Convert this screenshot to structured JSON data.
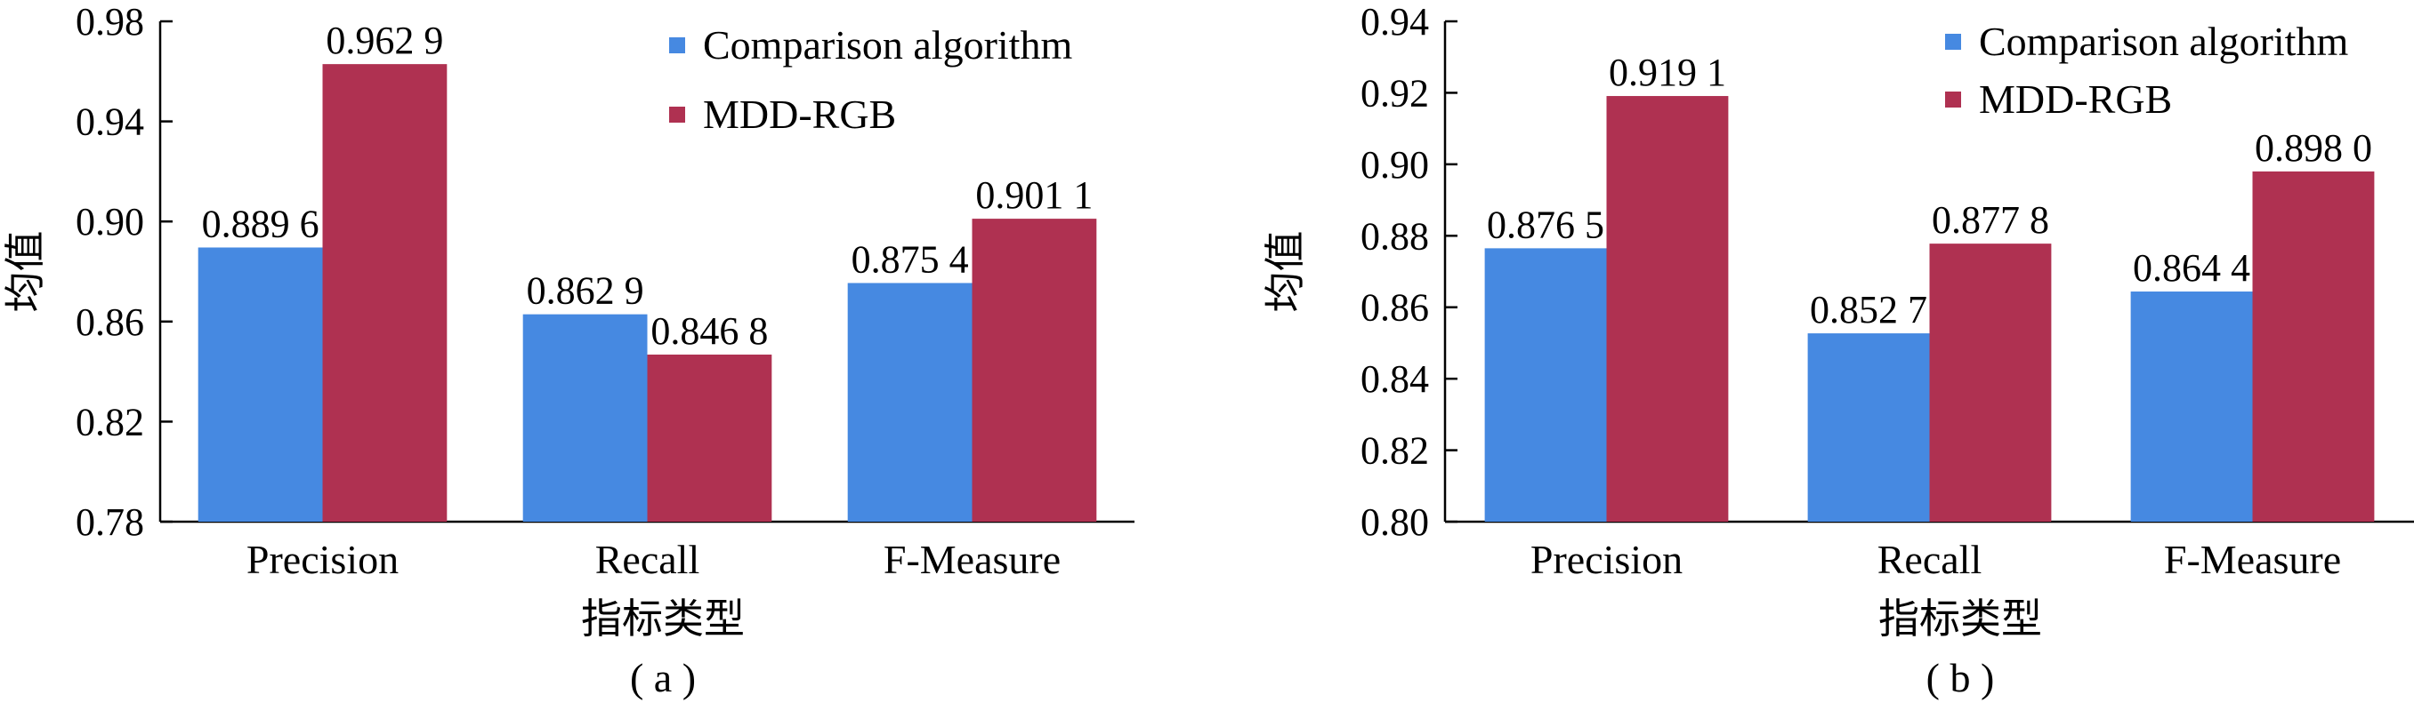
{
  "colors": {
    "comparison": "#4689E1",
    "mdd": "#AF3151"
  },
  "chart_data": [
    {
      "type": "bar",
      "caption": "( a )",
      "categories": [
        "Precision",
        "Recall",
        "F-Measure"
      ],
      "series": [
        {
          "name": "Comparison algorithm",
          "values": [
            0.8896,
            0.8629,
            0.8754
          ],
          "labels": [
            "0.889 6",
            "0.862 9",
            "0.875 4"
          ]
        },
        {
          "name": "MDD-RGB",
          "values": [
            0.9629,
            0.8468,
            0.9011
          ],
          "labels": [
            "0.962 9",
            "0.846 8",
            "0.901 1"
          ]
        }
      ],
      "xlabel": "指标类型",
      "ylabel": "均值",
      "ylim": [
        0.78,
        0.98
      ],
      "yticks": [
        "0.78",
        "0.82",
        "0.86",
        "0.90",
        "0.94",
        "0.98"
      ],
      "grid": false,
      "legend": "top-right"
    },
    {
      "type": "bar",
      "caption": "( b )",
      "categories": [
        "Precision",
        "Recall",
        "F-Measure"
      ],
      "series": [
        {
          "name": "Comparison algorithm",
          "values": [
            0.8765,
            0.8527,
            0.8644
          ],
          "labels": [
            "0.876 5",
            "0.852 7",
            "0.864 4"
          ]
        },
        {
          "name": "MDD-RGB",
          "values": [
            0.9191,
            0.8778,
            0.898
          ],
          "labels": [
            "0.919 1",
            "0.877 8",
            "0.898 0"
          ]
        }
      ],
      "xlabel": "指标类型",
      "ylabel": "均值",
      "ylim": [
        0.8,
        0.94
      ],
      "yticks": [
        "0.80",
        "0.82",
        "0.84",
        "0.86",
        "0.88",
        "0.90",
        "0.92",
        "0.94"
      ],
      "grid": false,
      "legend": "top-right"
    }
  ]
}
